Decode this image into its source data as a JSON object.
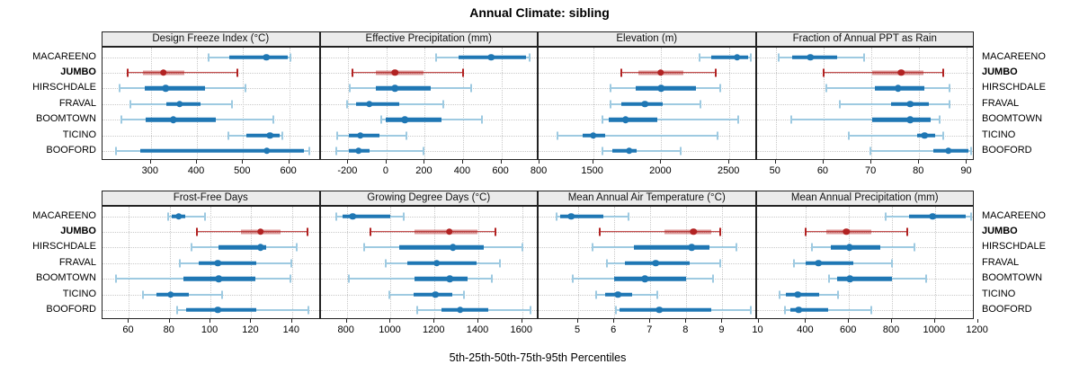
{
  "title": "Annual Climate: sibling",
  "caption": "5th-25th-50th-75th-95th Percentiles",
  "sites": [
    "MACAREENO",
    "JUMBO",
    "HIRSCHDALE",
    "FRAVAL",
    "BOOMTOWN",
    "TICINO",
    "BOOFORD"
  ],
  "highlight_site": "JUMBO",
  "colors": {
    "normal": "#1f77b4",
    "normal_pale": "#9ecae1",
    "highlight": "#b22222",
    "highlight_band": "rgba(178,34,34,0.45)",
    "strip_bg": "#ebebeb",
    "grid": "#c9c9c9",
    "border": "#222222"
  },
  "chart_data": [
    {
      "type": "dotplot-percentiles",
      "title": "Design Freeze Index (°C)",
      "domain": [
        195,
        668
      ],
      "ticks": [
        300,
        400,
        500,
        600
      ],
      "percentile_labels": [
        "5th",
        "25th",
        "50th",
        "75th",
        "95th"
      ],
      "series": {
        "MACAREENO": [
          425,
          470,
          550,
          597,
          603
        ],
        "JUMBO": [
          250,
          283,
          327,
          372,
          488
        ],
        "HIRSCHDALE": [
          232,
          287,
          332,
          417,
          506
        ],
        "FRAVAL": [
          255,
          334,
          362,
          407,
          475
        ],
        "BOOMTOWN": [
          235,
          288,
          349,
          440,
          565
        ],
        "TICINO": [
          468,
          508,
          558,
          580,
          585
        ],
        "BOOFORD": [
          225,
          277,
          551,
          631,
          644
        ]
      }
    },
    {
      "type": "dotplot-percentiles",
      "title": "Effective Precipitation (mm)",
      "domain": [
        -345,
        795
      ],
      "ticks": [
        -200,
        0,
        200,
        400,
        600,
        800
      ],
      "series": {
        "MACAREENO": [
          260,
          376,
          546,
          731,
          748
        ],
        "JUMBO": [
          -176,
          -58,
          44,
          193,
          402
        ],
        "HIRSCHDALE": [
          -190,
          -58,
          44,
          232,
          444
        ],
        "FRAVAL": [
          -207,
          -160,
          -89,
          67,
          295
        ],
        "BOOMTOWN": [
          -27,
          -5,
          96,
          287,
          499
        ],
        "TICINO": [
          -257,
          -199,
          -136,
          -35,
          103
        ],
        "BOOFORD": [
          -262,
          -199,
          -147,
          -89,
          193
        ]
      }
    },
    {
      "type": "dotplot-percentiles",
      "title": "Elevation (m)",
      "domain": [
        1100,
        2700
      ],
      "ticks": [
        1500,
        2000,
        2500
      ],
      "series": {
        "MACAREENO": [
          2280,
          2370,
          2555,
          2640,
          2660
        ],
        "JUMBO": [
          1705,
          1830,
          1995,
          2160,
          2400
        ],
        "HIRSCHDALE": [
          1625,
          1815,
          2000,
          2255,
          2430
        ],
        "FRAVAL": [
          1625,
          1710,
          1880,
          2010,
          2290
        ],
        "BOOMTOWN": [
          1570,
          1617,
          1737,
          1973,
          2565
        ],
        "TICINO": [
          1240,
          1423,
          1500,
          1588,
          2412
        ],
        "BOOFORD": [
          1570,
          1643,
          1764,
          1819,
          2144
        ]
      }
    },
    {
      "type": "dotplot-percentiles",
      "title": "Fraction of Annual PPT as Rain",
      "domain": [
        46,
        91.6
      ],
      "ticks": [
        50,
        60,
        70,
        80,
        90
      ],
      "series": {
        "MACAREENO": [
          50.6,
          53.5,
          57.2,
          62.8,
          68.5
        ],
        "JUMBO": [
          60.1,
          70.1,
          76.2,
          80.8,
          85.1
        ],
        "HIRSCHDALE": [
          60.6,
          70.8,
          75.6,
          81.1,
          86.3
        ],
        "FRAVAL": [
          63.4,
          74.2,
          78.1,
          82.0,
          86.3
        ],
        "BOOMTOWN": [
          53.3,
          70.1,
          78.1,
          82.3,
          84.2
        ],
        "TICINO": [
          65.3,
          79.5,
          81.1,
          83.3,
          85.0
        ],
        "BOOFORD": [
          69.8,
          82.9,
          86.1,
          90.3,
          90.8
        ]
      }
    },
    {
      "type": "dotplot-percentiles",
      "title": "Frost-Free Days",
      "domain": [
        47,
        154
      ],
      "ticks": [
        60,
        80,
        100,
        120,
        140
      ],
      "series": {
        "MACAREENO": [
          79,
          81,
          84.5,
          87.5,
          97.5
        ],
        "JUMBO": [
          93.5,
          115,
          124.5,
          134.5,
          147.5
        ],
        "HIRSCHDALE": [
          90.5,
          104,
          124.5,
          127.5,
          142.5
        ],
        "FRAVAL": [
          85,
          94,
          103.5,
          122.5,
          139.5
        ],
        "BOOMTOWN": [
          53.5,
          86.5,
          104,
          122,
          139
        ],
        "TICINO": [
          67,
          73.5,
          80.5,
          89.5,
          105.5
        ],
        "BOOFORD": [
          83.5,
          88,
          103.5,
          122.5,
          148
        ]
      }
    },
    {
      "type": "dotplot-percentiles",
      "title": "Growing Degree Days (°C)",
      "domain": [
        680,
        1675
      ],
      "ticks": [
        800,
        1000,
        1200,
        1400,
        1600
      ],
      "series": {
        "MACAREENO": [
          752,
          780,
          827,
          999,
          1061
        ],
        "JUMBO": [
          907,
          1110,
          1267,
          1398,
          1480
        ],
        "HIRSCHDALE": [
          880,
          1040,
          1284,
          1425,
          1600
        ],
        "FRAVAL": [
          976,
          1075,
          1210,
          1390,
          1500
        ],
        "BOOMTOWN": [
          811,
          1110,
          1270,
          1350,
          1460
        ],
        "TICINO": [
          995,
          1105,
          1205,
          1280,
          1336
        ],
        "BOOFORD": [
          1123,
          1233,
          1318,
          1446,
          1638
        ]
      }
    },
    {
      "type": "dotplot-percentiles",
      "title": "Mean Annual Air Temperature (°C)",
      "domain": [
        3.9,
        9.95
      ],
      "ticks": [
        5,
        6,
        7,
        8,
        9,
        10
      ],
      "series": {
        "MACAREENO": [
          4.4,
          4.5,
          4.8,
          5.7,
          6.4
        ],
        "JUMBO": [
          5.6,
          7.4,
          8.2,
          8.7,
          8.95
        ],
        "HIRSCHDALE": [
          5.4,
          6.55,
          8.15,
          8.65,
          9.4
        ],
        "FRAVAL": [
          5.8,
          6.3,
          7.15,
          8.1,
          8.95
        ],
        "BOOMTOWN": [
          4.85,
          6.0,
          6.85,
          8.0,
          8.75
        ],
        "TICINO": [
          5.5,
          5.75,
          6.1,
          6.5,
          7.2
        ],
        "BOOFORD": [
          6.05,
          6.15,
          7.25,
          8.7,
          9.8
        ]
      }
    },
    {
      "type": "dotplot-percentiles",
      "title": "Mean Annual Precipitation (mm)",
      "domain": [
        170,
        1185
      ],
      "ticks": [
        400,
        600,
        800,
        1000,
        1200
      ],
      "series": {
        "MACAREENO": [
          770,
          878,
          990,
          1143,
          1168
        ],
        "JUMBO": [
          397,
          495,
          588,
          704,
          871
        ],
        "HIRSCHDALE": [
          428,
          516,
          602,
          746,
          905
        ],
        "FRAVAL": [
          345,
          397,
          457,
          620,
          800
        ],
        "BOOMTOWN": [
          505,
          544,
          604,
          800,
          960
        ],
        "TICINO": [
          275,
          307,
          362,
          460,
          548
        ],
        "BOOFORD": [
          300,
          327,
          365,
          502,
          705
        ]
      }
    }
  ]
}
